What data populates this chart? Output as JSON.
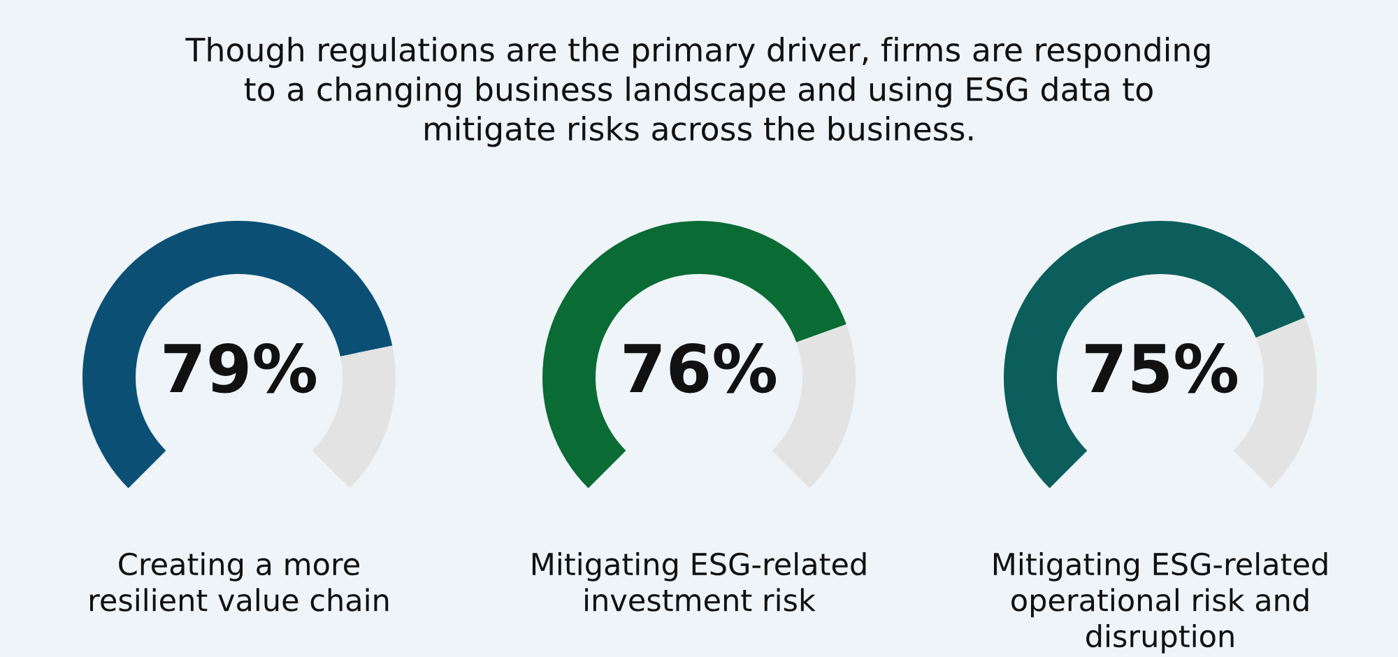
{
  "chart_data": [
    {
      "type": "other",
      "title": "Though regulations are the primary driver, firms are responding\nto a changing business landscape and using ESG data to\nmitigate risks across the business."
    },
    {
      "type": "donut",
      "title": "Creating a more\nresilient value chain",
      "categories": [
        null,
        null
      ],
      "values": [
        79,
        21
      ],
      "colors": [
        "#0b4f75",
        "#e3e3e3"
      ],
      "value_labels": [
        "79%",
        null
      ]
    },
    {
      "type": "donut",
      "title": "Mitigating ESG-related\ninvestment risk",
      "categories": [
        null,
        null
      ],
      "values": [
        76,
        24
      ],
      "colors": [
        "#0a6b34",
        "#e3e3e3"
      ],
      "value_labels": [
        "76%",
        null
      ]
    },
    {
      "type": "donut",
      "title": "Mitigating ESG-related\noperational risk and\ndisruption",
      "categories": [
        null,
        null
      ],
      "values": [
        75,
        25
      ],
      "colors": [
        "#0b5e5b",
        "#e3e3e3"
      ],
      "value_labels": [
        "75%",
        null
      ]
    }
  ]
}
